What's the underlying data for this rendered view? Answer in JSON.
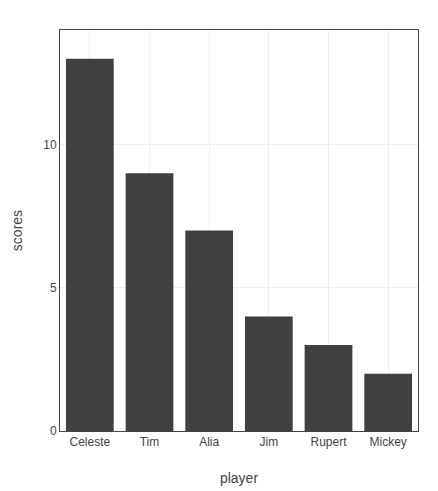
{
  "chart_data": {
    "type": "bar",
    "categories": [
      "Celeste",
      "Tim",
      "Alia",
      "Jim",
      "Rupert",
      "Mickey"
    ],
    "values": [
      13,
      9,
      7,
      4,
      3,
      2
    ],
    "color": "#404040",
    "xlabel": "player",
    "ylabel": "scores",
    "ylim": [
      0,
      14
    ],
    "yticks": [
      0,
      5,
      10
    ],
    "grid": true
  }
}
